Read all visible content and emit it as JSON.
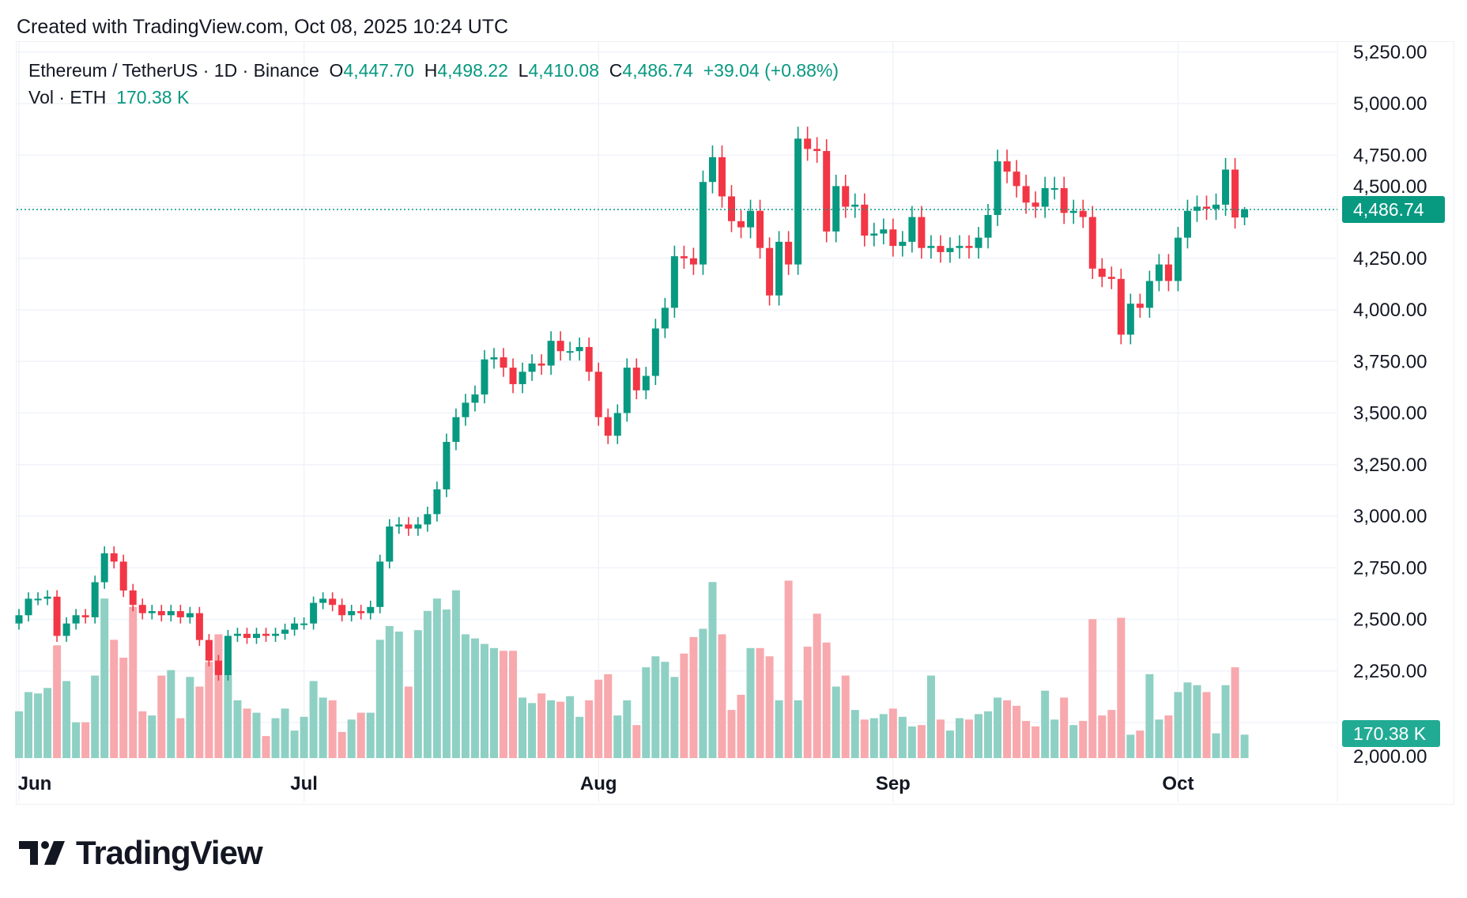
{
  "created": "Created with TradingView.com, Oct 08, 2025 10:24 UTC",
  "legend": {
    "symbol": "Ethereum / TetherUS · 1D · Binance",
    "o_label": "O",
    "open": "4,447.70",
    "h_label": "H",
    "high": "4,498.22",
    "l_label": "L",
    "low": "4,410.08",
    "c_label": "C",
    "close": "4,486.74",
    "change": "+39.04 (+0.88%)",
    "vol_label": "Vol · ETH",
    "vol_value": "170.38 K"
  },
  "logo_text": "TradingView",
  "colors": {
    "up": "#089981",
    "down": "#F23645",
    "up_vol": "#8fd0c4",
    "down_vol": "#f7a9ae"
  },
  "chart_data": {
    "type": "candlestick",
    "title": "Ethereum / TetherUS · 1D · Binance",
    "start_date": "Jun 1 2025",
    "interval": "1D",
    "y_ticks": [
      "5,250.00",
      "5,000.00",
      "4,750.00",
      "4,500.00",
      "4,250.00",
      "4,000.00",
      "3,750.00",
      "3,500.00",
      "3,250.00",
      "3,000.00",
      "2,750.00",
      "2,500.00",
      "2,250.00",
      "2,000.00"
    ],
    "y_tick_values": [
      5250,
      5000,
      4750,
      4500,
      4250,
      4000,
      3750,
      3500,
      3250,
      3000,
      2750,
      2500,
      2250,
      2000
    ],
    "x_ticks": [
      {
        "label": "Jun",
        "day": 0
      },
      {
        "label": "Jul",
        "day": 30
      },
      {
        "label": "Aug",
        "day": 61
      },
      {
        "label": "Sep",
        "day": 92
      },
      {
        "label": "Oct",
        "day": 122
      }
    ],
    "last_price_label": "4,486.74",
    "last_volume_label": "170.38 K",
    "first_open": 2480,
    "close": [
      2520,
      2600,
      2600,
      2610,
      2420,
      2480,
      2520,
      2510,
      2680,
      2820,
      2780,
      2640,
      2570,
      2530,
      2540,
      2520,
      2540,
      2510,
      2530,
      2400,
      2300,
      2230,
      2420,
      2430,
      2410,
      2430,
      2420,
      2430,
      2450,
      2480,
      2480,
      2580,
      2600,
      2570,
      2520,
      2540,
      2530,
      2560,
      2780,
      2950,
      2960,
      2940,
      2960,
      3010,
      3130,
      3360,
      3480,
      3550,
      3590,
      3760,
      3770,
      3720,
      3640,
      3700,
      3740,
      3730,
      3850,
      3800,
      3800,
      3820,
      3700,
      3480,
      3390,
      3500,
      3720,
      3610,
      3680,
      3910,
      4010,
      4260,
      4250,
      4220,
      4620,
      4740,
      4550,
      4430,
      4400,
      4480,
      4300,
      4070,
      4330,
      4220,
      4830,
      4780,
      4770,
      4380,
      4600,
      4500,
      4510,
      4360,
      4370,
      4390,
      4310,
      4330,
      4450,
      4300,
      4310,
      4280,
      4300,
      4310,
      4300,
      4350,
      4460,
      4720,
      4670,
      4600,
      4520,
      4500,
      4590,
      4590,
      4470,
      4480,
      4450,
      4200,
      4160,
      4150,
      3880,
      4030,
      4010,
      4140,
      4220,
      4140,
      4350,
      4480,
      4500,
      4490,
      4510,
      4680,
      4447.7,
      4486.74
    ],
    "last_candle": {
      "open": 4447.7,
      "high": 4498.22,
      "low": 4410.08,
      "close": 4486.74
    },
    "volume_k": [
      340,
      480,
      470,
      510,
      820,
      560,
      260,
      260,
      600,
      1160,
      860,
      730,
      1100,
      340,
      310,
      600,
      640,
      290,
      590,
      520,
      700,
      900,
      610,
      420,
      360,
      330,
      160,
      290,
      360,
      200,
      300,
      560,
      440,
      420,
      190,
      280,
      330,
      330,
      860,
      960,
      920,
      520,
      930,
      1070,
      1160,
      1080,
      1220,
      900,
      870,
      830,
      800,
      780,
      780,
      440,
      400,
      470,
      420,
      410,
      450,
      300,
      420,
      570,
      610,
      310,
      420,
      240,
      660,
      740,
      700,
      590,
      760,
      880,
      940,
      1280,
      900,
      350,
      460,
      800,
      800,
      740,
      420,
      1290,
      420,
      810,
      1050,
      840,
      520,
      600,
      350,
      280,
      290,
      320,
      360,
      300,
      230,
      240,
      600,
      280,
      200,
      290,
      280,
      320,
      340,
      440,
      420,
      380,
      270,
      230,
      490,
      280,
      440,
      240,
      270,
      1010,
      310,
      350,
      1020,
      170,
      200,
      610,
      280,
      310,
      480,
      550,
      530,
      480,
      180,
      530,
      660,
      170.38
    ]
  }
}
